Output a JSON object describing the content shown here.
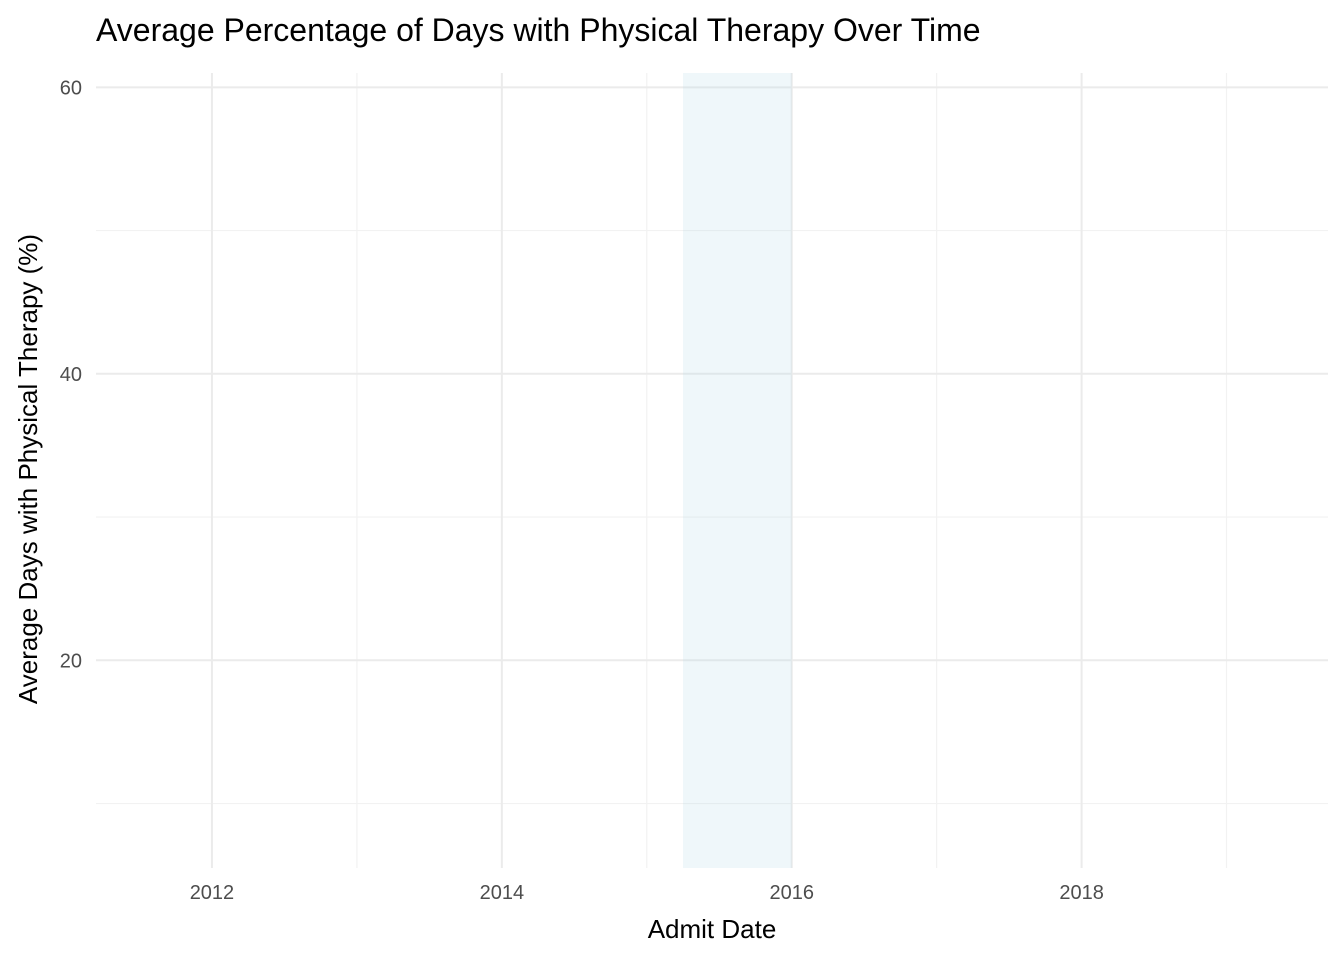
{
  "chart_data": {
    "type": "line",
    "title": "Average Percentage of Days with Physical Therapy Over Time",
    "xlabel": "Admit Date",
    "ylabel": "Average Days with Physical Therapy (%)",
    "xlim": [
      2011.2,
      2019.7
    ],
    "ylim": [
      5.5,
      61
    ],
    "x_ticks": [
      2012,
      2014,
      2016,
      2018
    ],
    "x_minor_ticks": [
      2013,
      2015,
      2017,
      2019
    ],
    "y_ticks": [
      20,
      40,
      60
    ],
    "y_minor_ticks": [
      10,
      30,
      50
    ],
    "grid": true,
    "series": [],
    "highlight_band": {
      "x_start": 2015.25,
      "x_end": 2016.0,
      "color": "#add8e6",
      "opacity": 0.2
    }
  },
  "colors": {
    "background": "#ffffff",
    "grid_major": "#ebebeb",
    "grid_minor": "#f2f2f2",
    "tick_text": "#4d4d4d",
    "title_text": "#000000"
  }
}
